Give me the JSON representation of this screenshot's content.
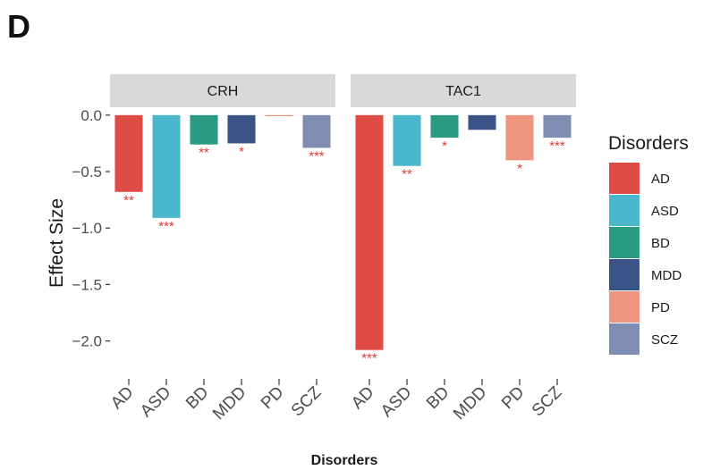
{
  "figure": {
    "panel_letter": "D"
  },
  "chart_data": {
    "type": "bar",
    "facets": [
      "CRH",
      "TAC1"
    ],
    "categories": [
      "AD",
      "ASD",
      "BD",
      "MDD",
      "PD",
      "SCZ"
    ],
    "series": [
      {
        "facet": "CRH",
        "values": [
          -0.68,
          -0.91,
          -0.26,
          -0.25,
          -0.01,
          -0.29
        ],
        "significance": [
          "**",
          "***",
          "**",
          "*",
          "",
          "***"
        ]
      },
      {
        "facet": "TAC1",
        "values": [
          -2.08,
          -0.45,
          -0.2,
          -0.13,
          -0.4,
          -0.2
        ],
        "significance": [
          "***",
          "**",
          "*",
          "",
          "*",
          "***"
        ]
      }
    ],
    "colors": {
      "AD": "#df4c45",
      "ASD": "#4bb7cd",
      "BD": "#2b9a83",
      "MDD": "#3b5487",
      "PD": "#ee9580",
      "SCZ": "#808db2"
    },
    "significance_color": "#e8362b",
    "xlabel": "Disorders",
    "ylabel": "Effect Size",
    "ylim": [
      -2.13,
      0.07
    ],
    "yticks": [
      0.0,
      -0.5,
      -1.0,
      -1.5,
      -2.0
    ],
    "ytick_labels": [
      "0.0",
      "−0.5",
      "−1.0",
      "−1.5",
      "−2.0"
    ],
    "legend": {
      "title": "Disorders",
      "position": "right",
      "entries": [
        "AD",
        "ASD",
        "BD",
        "MDD",
        "PD",
        "SCZ"
      ]
    },
    "grid": false
  }
}
